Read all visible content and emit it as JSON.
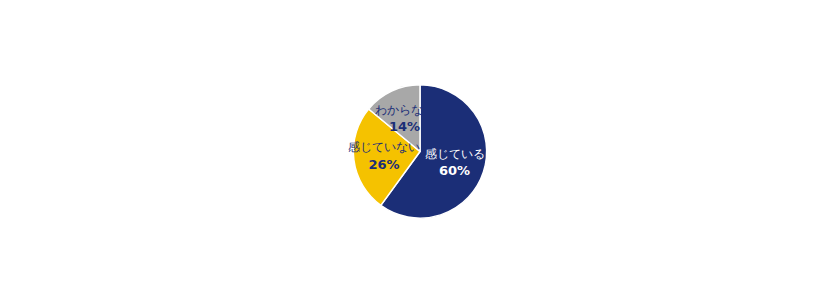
{
  "chart_data": {
    "type": "pie",
    "categories": [
      "感じている",
      "感じていない",
      "わからない"
    ],
    "values": [
      60,
      26,
      14
    ],
    "value_labels": [
      "60%",
      "26%",
      "14%"
    ],
    "colors": [
      "#1b2e77",
      "#f5c200",
      "#a8a8a8"
    ],
    "data_labels": true
  }
}
